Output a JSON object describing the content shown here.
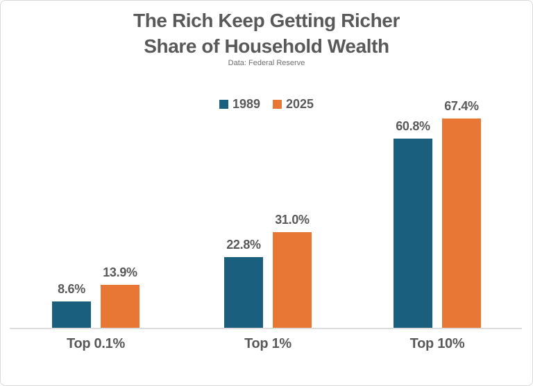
{
  "chart_data": {
    "type": "bar",
    "title": "The Rich Keep Getting Richer",
    "subtitle": "Share of Household Wealth",
    "source": "Data: Federal Reserve",
    "categories": [
      "Top 0.1%",
      "Top 1%",
      "Top 10%"
    ],
    "series": [
      {
        "name": "1989",
        "color": "#1A5F7E",
        "values": [
          8.6,
          22.8,
          60.8
        ],
        "labels": [
          "8.6%",
          "22.8%",
          "60.8%"
        ]
      },
      {
        "name": "2025",
        "color": "#E87634",
        "values": [
          13.9,
          31.0,
          67.4
        ],
        "labels": [
          "13.9%",
          "31.0%",
          "67.4%"
        ]
      }
    ],
    "ylabel": "",
    "xlabel": "",
    "ylim": [
      0,
      75
    ],
    "grid": false,
    "legend_position": "top-center",
    "text_color": "#595959"
  }
}
